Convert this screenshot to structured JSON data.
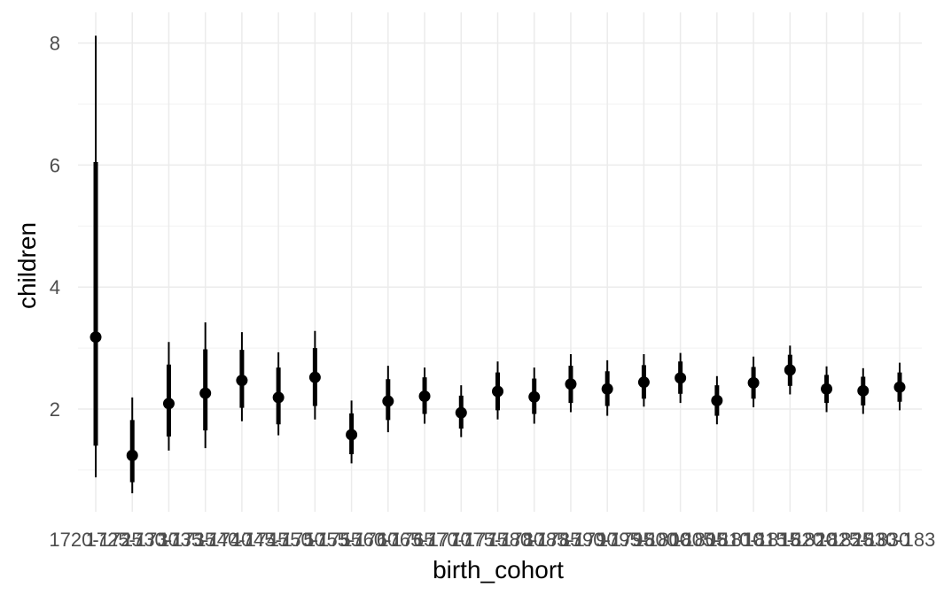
{
  "chart_data": {
    "type": "interval",
    "xlabel": "birth_cohort",
    "ylabel": "children",
    "ylim": [
      0.35,
      8.3
    ],
    "yticks": [
      2,
      4,
      6,
      8
    ],
    "grid": true,
    "categories": [
      "1720-1725",
      "1725-1730",
      "1730-1735",
      "1735-1740",
      "1740-1745",
      "1745-1750",
      "1750-1755",
      "1755-1760",
      "1760-1765",
      "1765-1770",
      "1770-1775",
      "1775-1780",
      "1780-1785",
      "1785-1790",
      "1790-1795",
      "1795-1800",
      "1800-1805",
      "1805-1810",
      "1810-1815",
      "1815-1820",
      "1820-1825",
      "1825-1830",
      "1830-1835"
    ],
    "estimate": [
      3.18,
      1.24,
      2.09,
      2.26,
      2.47,
      2.19,
      2.52,
      1.58,
      2.13,
      2.21,
      1.94,
      2.29,
      2.2,
      2.41,
      2.33,
      2.44,
      2.51,
      2.14,
      2.43,
      2.64,
      2.33,
      2.3,
      2.36
    ],
    "inner_low": [
      1.4,
      0.8,
      1.55,
      1.65,
      2.02,
      1.75,
      2.05,
      1.26,
      1.82,
      1.92,
      1.68,
      1.98,
      1.92,
      2.1,
      2.05,
      2.17,
      2.25,
      1.89,
      2.17,
      2.38,
      2.1,
      2.06,
      2.12
    ],
    "inner_high": [
      6.05,
      1.82,
      2.73,
      2.98,
      2.97,
      2.68,
      3.0,
      1.93,
      2.49,
      2.52,
      2.22,
      2.6,
      2.5,
      2.71,
      2.62,
      2.72,
      2.78,
      2.39,
      2.69,
      2.89,
      2.56,
      2.53,
      2.6
    ],
    "outer_low": [
      0.88,
      0.62,
      1.32,
      1.36,
      1.8,
      1.57,
      1.83,
      1.11,
      1.62,
      1.76,
      1.54,
      1.83,
      1.76,
      1.95,
      1.89,
      2.04,
      2.1,
      1.75,
      2.03,
      2.24,
      1.95,
      1.92,
      1.98
    ],
    "outer_high": [
      8.12,
      2.19,
      3.1,
      3.42,
      3.26,
      2.93,
      3.28,
      2.14,
      2.71,
      2.68,
      2.39,
      2.78,
      2.68,
      2.9,
      2.8,
      2.9,
      2.92,
      2.54,
      2.86,
      3.04,
      2.7,
      2.67,
      2.76
    ]
  }
}
